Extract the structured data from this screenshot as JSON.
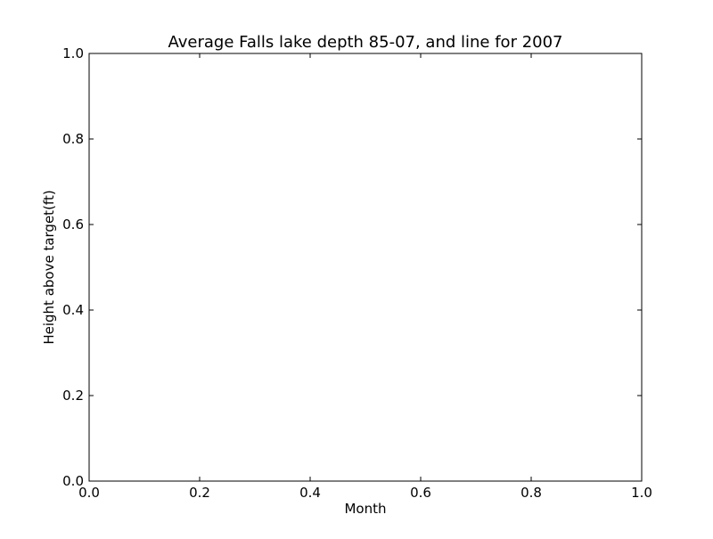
{
  "chart_data": {
    "type": "line",
    "title": "Average Falls lake depth 85-07, and line for 2007",
    "xlabel": "Month",
    "ylabel": "Height above target(ft)",
    "xlim": [
      0,
      1
    ],
    "ylim": [
      0,
      1
    ],
    "x_ticks": [
      0.0,
      0.2,
      0.4,
      0.6,
      0.8,
      1.0
    ],
    "y_ticks": [
      0.0,
      0.2,
      0.4,
      0.6,
      0.8,
      1.0
    ],
    "x_tick_labels": [
      "0.0",
      "0.2",
      "0.4",
      "0.6",
      "0.8",
      "1.0"
    ],
    "y_tick_labels": [
      "0.0",
      "0.2",
      "0.4",
      "0.6",
      "0.8",
      "1.0"
    ],
    "series": [],
    "grid": false,
    "legend": "none"
  },
  "colors": {
    "axes": "#000000",
    "background": "#ffffff"
  }
}
